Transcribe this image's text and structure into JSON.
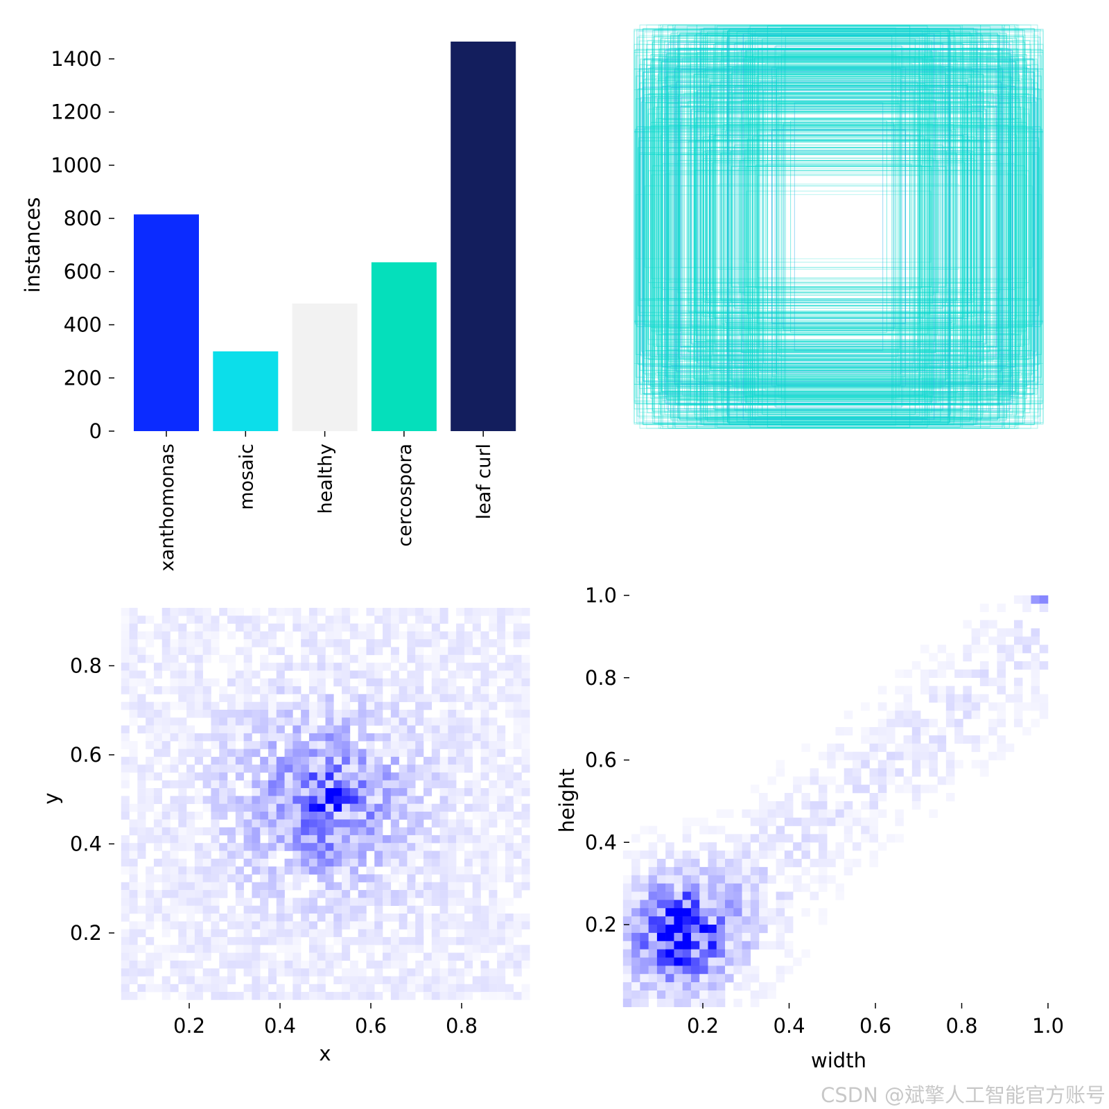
{
  "chart_data": [
    {
      "type": "bar",
      "ylabel": "instances",
      "categories": [
        "xanthomonas",
        "mosaic",
        "healthy",
        "cercospora",
        "leaf curl"
      ],
      "values": [
        815,
        300,
        480,
        635,
        1465
      ],
      "colors": [
        "#0b2bff",
        "#0cdeea",
        "#f2f2f2",
        "#05dfbb",
        "#131e5d"
      ],
      "ylim": [
        0,
        1465
      ],
      "yticks": [
        "0",
        "200",
        "400",
        "600",
        "800",
        "1000",
        "1200",
        "1400"
      ]
    },
    {
      "type": "box_overlay",
      "description": "label boxes drawn centred on a common origin",
      "color": "#05d9cc"
    },
    {
      "type": "heatmap",
      "xlabel": "x",
      "ylabel": "y",
      "xlim": [
        0.05,
        0.95
      ],
      "ylim": [
        0.05,
        0.93
      ],
      "xticks": [
        "0.2",
        "0.4",
        "0.6",
        "0.8"
      ],
      "yticks": [
        "0.2",
        "0.4",
        "0.6",
        "0.8"
      ],
      "color": "#0000ff",
      "peak": [
        0.5,
        0.5
      ]
    },
    {
      "type": "heatmap",
      "xlabel": "width",
      "ylabel": "height",
      "xlim": [
        0.0,
        1.0
      ],
      "ylim": [
        0.0,
        1.0
      ],
      "xticks": [
        "0.2",
        "0.4",
        "0.6",
        "0.8",
        "1.0"
      ],
      "yticks": [
        "0.2",
        "0.4",
        "0.6",
        "0.8",
        "1.0"
      ],
      "color": "#0000ff",
      "peak": [
        0.15,
        0.18
      ]
    }
  ],
  "watermark": "CSDN @斌擎人工智能官方账号"
}
